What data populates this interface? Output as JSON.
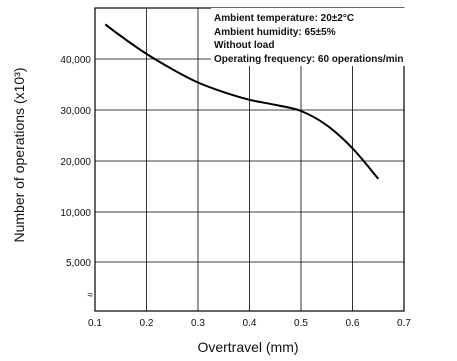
{
  "chart_data": {
    "type": "line",
    "xlabel": "Overtravel (mm)",
    "ylabel": "Number of operations  (x10³)",
    "xlim": [
      0.1,
      0.7
    ],
    "x_ticks": [
      0.1,
      0.2,
      0.3,
      0.4,
      0.5,
      0.6,
      0.7
    ],
    "x_tick_labels": [
      "0.1",
      "0.2",
      "0.3",
      "0.4",
      "0.5",
      "0.6",
      "0.7"
    ],
    "y_ticks": [
      0,
      5000,
      10000,
      20000,
      30000,
      40000
    ],
    "y_tick_labels": [
      "≈",
      "5,000",
      "10,000",
      "20,000",
      "30,000",
      "40,000"
    ],
    "y_axis_break": true,
    "grid": true,
    "annotations": [
      "Ambient temperature: 20±2°C",
      "Ambient humidity: 65±5%",
      "Without load",
      "Operating frequency: 60 operations/min"
    ],
    "series": [
      {
        "x": [
          0.12,
          0.15,
          0.2,
          0.25,
          0.3,
          0.35,
          0.4,
          0.45,
          0.5,
          0.55,
          0.6,
          0.65
        ],
        "y": [
          46800,
          44500,
          41000,
          38000,
          35400,
          33500,
          32000,
          31000,
          29800,
          27000,
          22500,
          16500
        ]
      }
    ]
  }
}
